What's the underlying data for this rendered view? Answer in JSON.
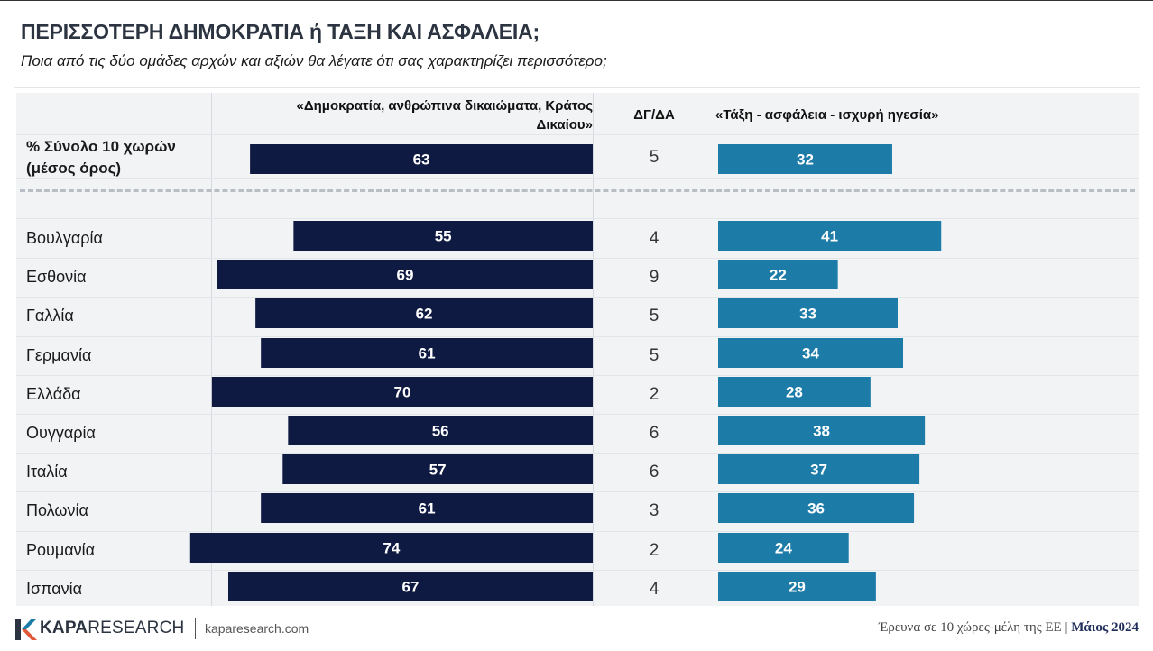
{
  "title": "ΠΕΡΙΣΣΟΤΕΡΗ ΔΗΜΟΚΡΑΤΙΑ ή ΤΑΞΗ ΚΑΙ ΑΣΦΑΛΕΙΑ;",
  "subtitle": "Ποια από τις δύο ομάδες αρχών και αξιών θα λέγατε ότι σας χαρακτηρίζει περισσότερο;",
  "colors": {
    "democracy_bar": "#0e1a42",
    "order_bar": "#1d7ba8",
    "panel": "#f2f3f5"
  },
  "chart_data": {
    "type": "bar",
    "orientation": "horizontal-diverging",
    "columns": {
      "left": "«Δημοκρατία, ανθρώπινα δικαιώματα, Κράτος Δικαίου»",
      "middle": "ΔΓ/ΔΑ",
      "right": "«Τάξη - ασφάλεια - ισχυρή ηγεσία»"
    },
    "total": {
      "label": "% Σύνολο 10 χωρών (μέσος όρος)",
      "democracy": 63,
      "dkna": 5,
      "order": 32
    },
    "categories": [
      "Βουλγαρία",
      "Εσθονία",
      "Γαλλία",
      "Γερμανία",
      "Ελλάδα",
      "Ουγγαρία",
      "Ιταλία",
      "Πολωνία",
      "Ρουμανία",
      "Ισπανία"
    ],
    "series": [
      {
        "name": "«Δημοκρατία, ανθρώπινα δικαιώματα, Κράτος Δικαίου»",
        "values": [
          55,
          69,
          62,
          61,
          70,
          56,
          57,
          61,
          74,
          67
        ]
      },
      {
        "name": "ΔΓ/ΔΑ",
        "values": [
          4,
          9,
          5,
          5,
          2,
          6,
          6,
          3,
          2,
          4
        ]
      },
      {
        "name": "«Τάξη - ασφάλεια - ισχυρή ηγεσία»",
        "values": [
          41,
          22,
          33,
          34,
          28,
          38,
          37,
          36,
          24,
          29
        ]
      }
    ]
  },
  "footer": {
    "logo_bold": "KAPA",
    "logo_rest": "RESEARCH",
    "url": "kaparesearch.com",
    "source": "Έρευνα σε 10 χώρες-μέλη της ΕΕ",
    "separator": "|",
    "date": "Μάιος 2024"
  }
}
